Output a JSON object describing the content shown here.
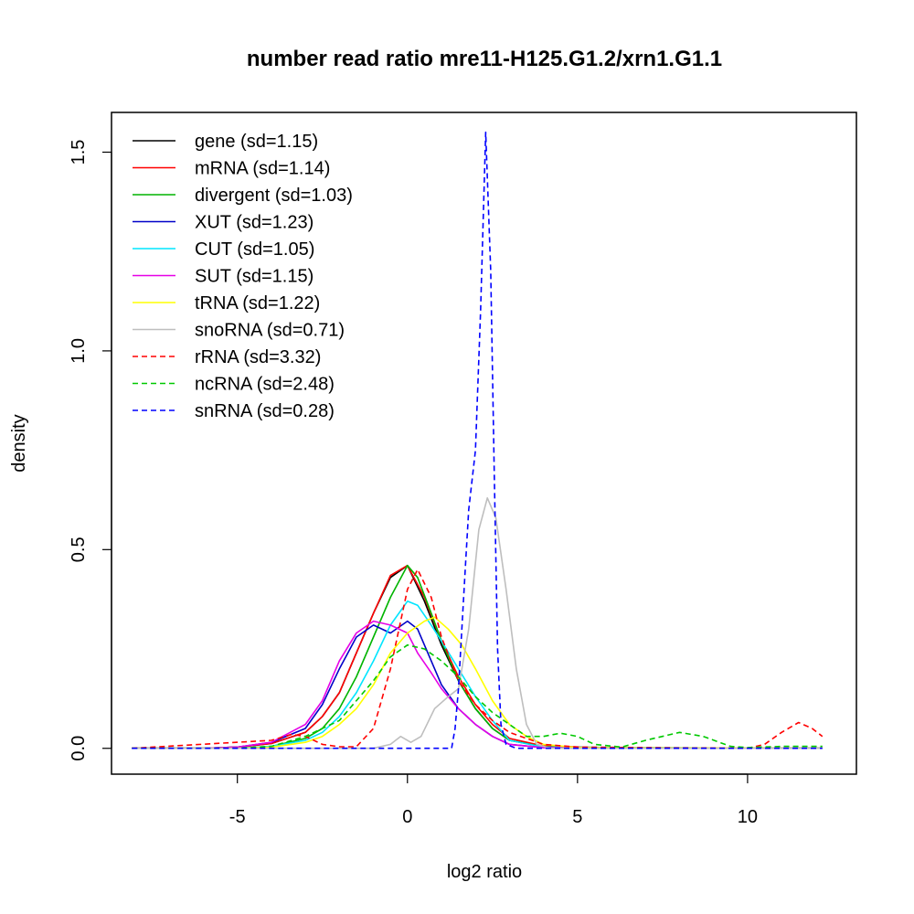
{
  "chart_data": {
    "type": "line",
    "title": "number read ratio mre11-H125.G1.2/xrn1.G1.1",
    "xlabel": "log2 ratio",
    "ylabel": "density",
    "xlim": [
      -8.7,
      13.2
    ],
    "ylim": [
      -0.065,
      1.6
    ],
    "x_ticks": [
      -5,
      0,
      5,
      10
    ],
    "y_ticks": [
      0.0,
      0.5,
      1.0,
      1.5
    ],
    "x_tick_labels": [
      "-5",
      "0",
      "5",
      "10"
    ],
    "y_tick_labels": [
      "0.0",
      "0.5",
      "1.0",
      "1.5"
    ],
    "grid": false,
    "legend_position": "top-left",
    "series": [
      {
        "name": "gene (sd=1.15)",
        "color": "#000000",
        "dash": "solid",
        "points": [
          [
            -8.1,
            0
          ],
          [
            -6,
            0
          ],
          [
            -5,
            0.003
          ],
          [
            -4,
            0.012
          ],
          [
            -3,
            0.04
          ],
          [
            -2.5,
            0.08
          ],
          [
            -2,
            0.14
          ],
          [
            -1.5,
            0.24
          ],
          [
            -1,
            0.34
          ],
          [
            -0.5,
            0.43
          ],
          [
            0,
            0.46
          ],
          [
            0.5,
            0.37
          ],
          [
            1,
            0.26
          ],
          [
            1.5,
            0.17
          ],
          [
            2,
            0.1
          ],
          [
            2.5,
            0.05
          ],
          [
            3,
            0.02
          ],
          [
            4,
            0.005
          ],
          [
            6,
            0.001
          ],
          [
            12.2,
            0
          ]
        ]
      },
      {
        "name": "mRNA (sd=1.14)",
        "color": "#ff0000",
        "dash": "solid",
        "points": [
          [
            -8.1,
            0
          ],
          [
            -6,
            0
          ],
          [
            -5,
            0.003
          ],
          [
            -4,
            0.012
          ],
          [
            -3,
            0.04
          ],
          [
            -2.5,
            0.08
          ],
          [
            -2,
            0.14
          ],
          [
            -1.5,
            0.24
          ],
          [
            -1,
            0.34
          ],
          [
            -0.5,
            0.435
          ],
          [
            0,
            0.46
          ],
          [
            0.5,
            0.38
          ],
          [
            1,
            0.27
          ],
          [
            1.5,
            0.18
          ],
          [
            2,
            0.11
          ],
          [
            2.5,
            0.06
          ],
          [
            3,
            0.025
          ],
          [
            4,
            0.006
          ],
          [
            6,
            0.001
          ],
          [
            12.2,
            0
          ]
        ]
      },
      {
        "name": "divergent (sd=1.03)",
        "color": "#00b400",
        "dash": "solid",
        "points": [
          [
            -8.1,
            0
          ],
          [
            -5,
            0
          ],
          [
            -4,
            0.005
          ],
          [
            -3,
            0.025
          ],
          [
            -2.5,
            0.05
          ],
          [
            -2,
            0.1
          ],
          [
            -1.5,
            0.18
          ],
          [
            -1,
            0.28
          ],
          [
            -0.5,
            0.38
          ],
          [
            0,
            0.46
          ],
          [
            0.3,
            0.43
          ],
          [
            0.7,
            0.34
          ],
          [
            1,
            0.27
          ],
          [
            1.5,
            0.17
          ],
          [
            2,
            0.1
          ],
          [
            2.5,
            0.05
          ],
          [
            3,
            0.02
          ],
          [
            4,
            0.004
          ],
          [
            6,
            0
          ],
          [
            12.2,
            0
          ]
        ]
      },
      {
        "name": "XUT (sd=1.23)",
        "color": "#0000c8",
        "dash": "solid",
        "points": [
          [
            -8.1,
            0
          ],
          [
            -6,
            0
          ],
          [
            -5,
            0.003
          ],
          [
            -4,
            0.015
          ],
          [
            -3,
            0.05
          ],
          [
            -2.5,
            0.11
          ],
          [
            -2,
            0.2
          ],
          [
            -1.5,
            0.28
          ],
          [
            -1,
            0.31
          ],
          [
            -0.5,
            0.29
          ],
          [
            0,
            0.32
          ],
          [
            0.3,
            0.3
          ],
          [
            0.7,
            0.22
          ],
          [
            1,
            0.16
          ],
          [
            1.5,
            0.1
          ],
          [
            2,
            0.06
          ],
          [
            2.5,
            0.03
          ],
          [
            3,
            0.01
          ],
          [
            4,
            0.002
          ],
          [
            12.2,
            0
          ]
        ]
      },
      {
        "name": "CUT (sd=1.05)",
        "color": "#00e5ff",
        "dash": "solid",
        "points": [
          [
            -8.1,
            0
          ],
          [
            -5,
            0
          ],
          [
            -4,
            0.005
          ],
          [
            -3,
            0.02
          ],
          [
            -2.5,
            0.04
          ],
          [
            -2,
            0.08
          ],
          [
            -1.5,
            0.14
          ],
          [
            -1,
            0.22
          ],
          [
            -0.5,
            0.31
          ],
          [
            0,
            0.37
          ],
          [
            0.3,
            0.36
          ],
          [
            0.7,
            0.31
          ],
          [
            1,
            0.27
          ],
          [
            1.5,
            0.2
          ],
          [
            2,
            0.13
          ],
          [
            2.5,
            0.07
          ],
          [
            3,
            0.02
          ],
          [
            4,
            0.003
          ],
          [
            12.2,
            0
          ]
        ]
      },
      {
        "name": "SUT (sd=1.15)",
        "color": "#e600e6",
        "dash": "solid",
        "points": [
          [
            -8.1,
            0
          ],
          [
            -6,
            0
          ],
          [
            -5,
            0.003
          ],
          [
            -4,
            0.015
          ],
          [
            -3,
            0.06
          ],
          [
            -2.5,
            0.12
          ],
          [
            -2,
            0.22
          ],
          [
            -1.5,
            0.29
          ],
          [
            -1,
            0.32
          ],
          [
            -0.5,
            0.31
          ],
          [
            0,
            0.29
          ],
          [
            0.3,
            0.24
          ],
          [
            0.7,
            0.19
          ],
          [
            1,
            0.15
          ],
          [
            1.5,
            0.1
          ],
          [
            2,
            0.06
          ],
          [
            2.5,
            0.03
          ],
          [
            3,
            0.01
          ],
          [
            4,
            0.002
          ],
          [
            12.2,
            0
          ]
        ]
      },
      {
        "name": "tRNA (sd=1.22)",
        "color": "#ffff00",
        "dash": "solid",
        "points": [
          [
            -8.1,
            0
          ],
          [
            -5,
            0
          ],
          [
            -4,
            0.003
          ],
          [
            -3,
            0.015
          ],
          [
            -2.5,
            0.03
          ],
          [
            -2,
            0.06
          ],
          [
            -1.5,
            0.1
          ],
          [
            -1,
            0.16
          ],
          [
            -0.5,
            0.24
          ],
          [
            0,
            0.29
          ],
          [
            0.5,
            0.32
          ],
          [
            0.8,
            0.33
          ],
          [
            1.2,
            0.3
          ],
          [
            1.6,
            0.26
          ],
          [
            2,
            0.2
          ],
          [
            2.5,
            0.12
          ],
          [
            3,
            0.06
          ],
          [
            3.5,
            0.03
          ],
          [
            4,
            0.01
          ],
          [
            5,
            0.002
          ],
          [
            12.2,
            0
          ]
        ]
      },
      {
        "name": "snoRNA (sd=0.71)",
        "color": "#bebebe",
        "dash": "solid",
        "points": [
          [
            -8.1,
            0
          ],
          [
            -1,
            0
          ],
          [
            -0.5,
            0.01
          ],
          [
            -0.2,
            0.03
          ],
          [
            0.1,
            0.015
          ],
          [
            0.4,
            0.03
          ],
          [
            0.8,
            0.1
          ],
          [
            1.2,
            0.13
          ],
          [
            1.5,
            0.15
          ],
          [
            1.8,
            0.3
          ],
          [
            2.1,
            0.55
          ],
          [
            2.35,
            0.63
          ],
          [
            2.6,
            0.58
          ],
          [
            2.9,
            0.4
          ],
          [
            3.2,
            0.2
          ],
          [
            3.5,
            0.06
          ],
          [
            3.8,
            0.01
          ],
          [
            4.2,
            0
          ],
          [
            12.2,
            0
          ]
        ]
      },
      {
        "name": "rRNA (sd=3.32)",
        "color": "#ff0000",
        "dash": "dashed",
        "points": [
          [
            -8.1,
            0
          ],
          [
            -4,
            0.02
          ],
          [
            -3.4,
            0.035
          ],
          [
            -3,
            0.03
          ],
          [
            -2.5,
            0.01
          ],
          [
            -2,
            0.004
          ],
          [
            -1.5,
            0.004
          ],
          [
            -1,
            0.05
          ],
          [
            -0.5,
            0.2
          ],
          [
            0,
            0.4
          ],
          [
            0.3,
            0.45
          ],
          [
            0.7,
            0.38
          ],
          [
            1,
            0.28
          ],
          [
            1.5,
            0.17
          ],
          [
            2,
            0.11
          ],
          [
            2.5,
            0.07
          ],
          [
            3,
            0.04
          ],
          [
            4,
            0.01
          ],
          [
            5,
            0.003
          ],
          [
            8,
            0.001
          ],
          [
            10,
            0
          ],
          [
            10.5,
            0.01
          ],
          [
            11,
            0.04
          ],
          [
            11.5,
            0.065
          ],
          [
            11.9,
            0.05
          ],
          [
            12.2,
            0.03
          ]
        ]
      },
      {
        "name": "ncRNA (sd=2.48)",
        "color": "#00c800",
        "dash": "dashed",
        "points": [
          [
            -8.1,
            0
          ],
          [
            -5,
            0
          ],
          [
            -4,
            0.005
          ],
          [
            -3,
            0.03
          ],
          [
            -2,
            0.07
          ],
          [
            -1.5,
            0.12
          ],
          [
            -1,
            0.17
          ],
          [
            -0.5,
            0.23
          ],
          [
            0,
            0.26
          ],
          [
            0.5,
            0.25
          ],
          [
            1,
            0.22
          ],
          [
            1.5,
            0.18
          ],
          [
            2,
            0.13
          ],
          [
            2.5,
            0.09
          ],
          [
            3,
            0.06
          ],
          [
            3.5,
            0.03
          ],
          [
            4,
            0.03
          ],
          [
            4.5,
            0.038
          ],
          [
            5,
            0.03
          ],
          [
            5.5,
            0.01
          ],
          [
            6.3,
            0.003
          ],
          [
            7,
            0.02
          ],
          [
            8,
            0.04
          ],
          [
            8.7,
            0.03
          ],
          [
            9.5,
            0.005
          ],
          [
            10,
            0.002
          ],
          [
            11,
            0.005
          ],
          [
            12.2,
            0.005
          ]
        ]
      },
      {
        "name": "snRNA (sd=0.28)",
        "color": "#0000ff",
        "dash": "dashed",
        "points": [
          [
            -8.1,
            0
          ],
          [
            1.3,
            0
          ],
          [
            1.4,
            0.05
          ],
          [
            1.5,
            0.15
          ],
          [
            1.6,
            0.3
          ],
          [
            1.7,
            0.45
          ],
          [
            1.8,
            0.6
          ],
          [
            2,
            0.75
          ],
          [
            2.15,
            1.1
          ],
          [
            2.3,
            1.55
          ],
          [
            2.45,
            1.2
          ],
          [
            2.55,
            0.7
          ],
          [
            2.65,
            0.25
          ],
          [
            2.75,
            0.06
          ],
          [
            2.9,
            0.01
          ],
          [
            3.2,
            0
          ],
          [
            12.2,
            0
          ]
        ]
      }
    ]
  }
}
